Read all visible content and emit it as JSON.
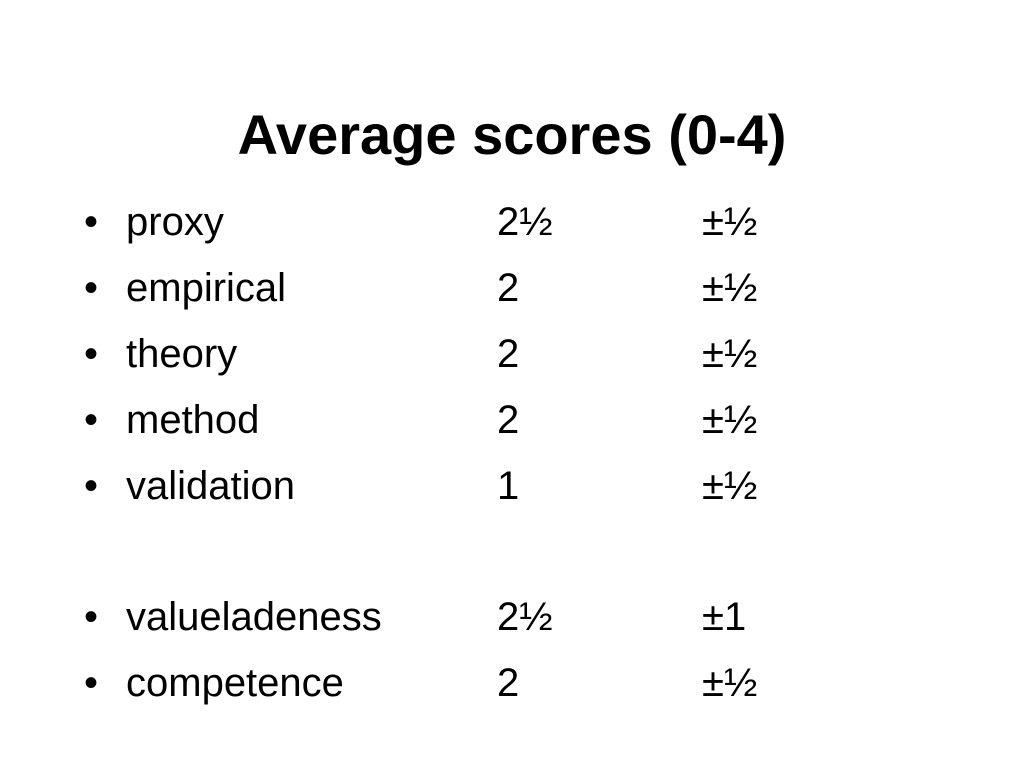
{
  "slide": {
    "title": "Average scores (0-4)",
    "bullet_char": "•",
    "items": [
      {
        "label": "proxy",
        "score": "2½",
        "deviation": "±½"
      },
      {
        "label": "empirical",
        "score": "2",
        "deviation": "±½"
      },
      {
        "label": "theory",
        "score": "2",
        "deviation": "±½"
      },
      {
        "label": "method",
        "score": "2",
        "deviation": "±½"
      },
      {
        "label": "validation",
        "score": "1",
        "deviation": "±½"
      },
      {
        "label": "valueladeness",
        "score": "2½",
        "deviation": "±1"
      },
      {
        "label": "competence",
        "score": "2",
        "deviation": "±½"
      }
    ]
  }
}
